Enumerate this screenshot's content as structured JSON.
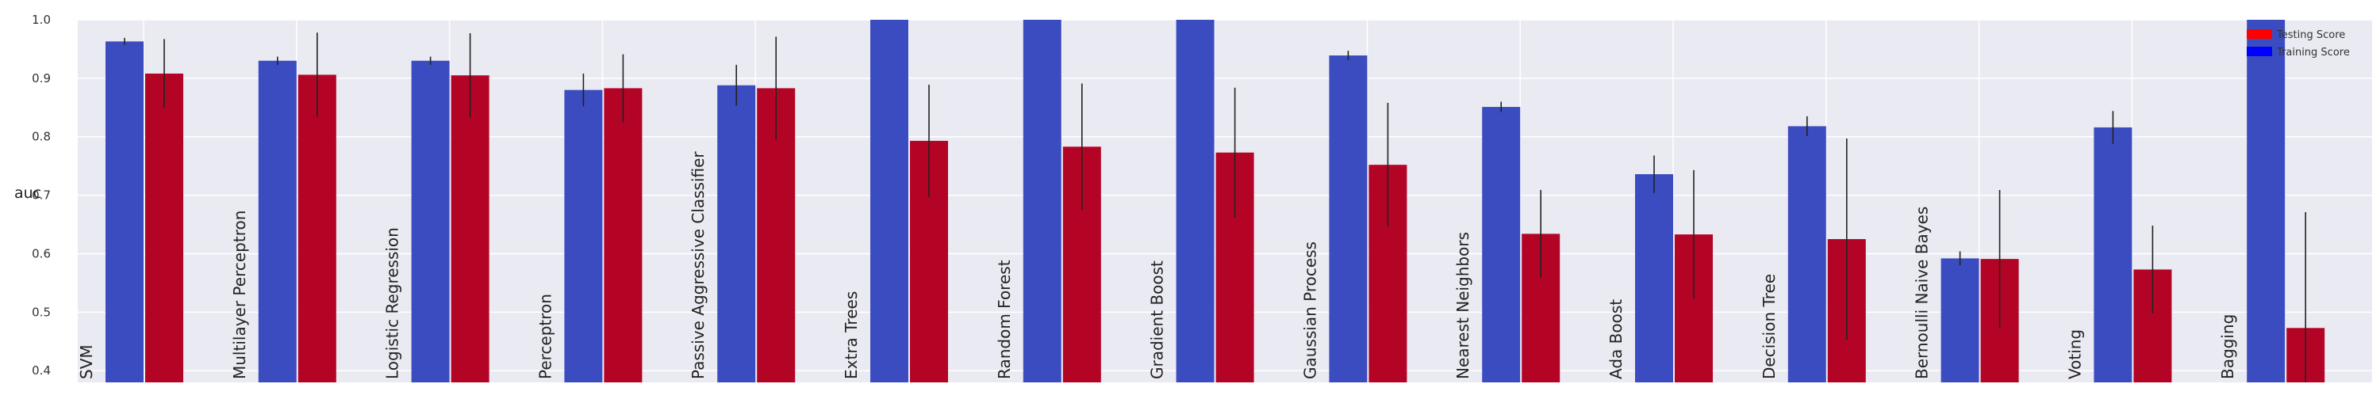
{
  "chart_data": {
    "type": "bar",
    "ylabel": "auc",
    "ylim": [
      0.38,
      1.0
    ],
    "yticks": [
      "0.4",
      "0.5",
      "0.6",
      "0.7",
      "0.8",
      "0.9",
      "1.0"
    ],
    "ytick_values": [
      0.4,
      0.5,
      0.6,
      0.7,
      0.8,
      0.9,
      1.0
    ],
    "grid": true,
    "legend_position": "top-right",
    "categories": [
      "SVM",
      "Multilayer Perceptron",
      "Logistic Regression",
      "Perceptron",
      "Passive Aggressive Classifier",
      "Extra Trees",
      "Random Forest",
      "Gradient Boost",
      "Gaussian Process",
      "Nearest Neighbors",
      "Ada Boost",
      "Decision Tree",
      "Bernoulli Naive Bayes",
      "Voting",
      "Bagging"
    ],
    "series": [
      {
        "name": "Training Score",
        "color": "#3b4cc0",
        "legend_color": "#0000ff",
        "values": [
          0.963,
          0.93,
          0.93,
          0.88,
          0.888,
          1.0,
          1.0,
          1.0,
          0.939,
          0.851,
          0.736,
          0.818,
          0.592,
          0.816,
          1.0
        ],
        "errors": [
          0.006,
          0.007,
          0.007,
          0.028,
          0.035,
          0.0,
          0.0,
          0.0,
          0.008,
          0.009,
          0.032,
          0.017,
          0.012,
          0.028,
          0.0
        ]
      },
      {
        "name": "Testing Score",
        "color": "#b40426",
        "legend_color": "#ff0000",
        "values": [
          0.908,
          0.906,
          0.905,
          0.883,
          0.883,
          0.793,
          0.783,
          0.773,
          0.752,
          0.634,
          0.633,
          0.625,
          0.591,
          0.573,
          0.473
        ],
        "errors": [
          0.059,
          0.072,
          0.072,
          0.058,
          0.088,
          0.096,
          0.108,
          0.111,
          0.106,
          0.075,
          0.11,
          0.172,
          0.118,
          0.075,
          0.198
        ]
      }
    ]
  }
}
